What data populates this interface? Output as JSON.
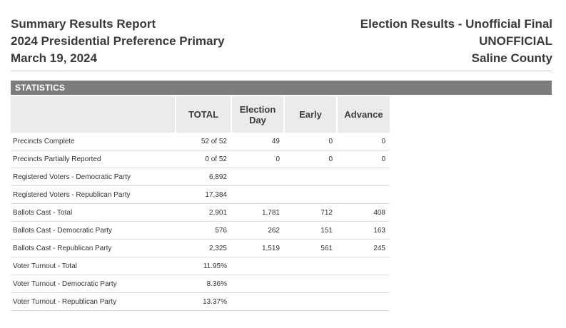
{
  "header": {
    "title": "Summary Results Report",
    "election": "2024 Presidential Preference Primary",
    "date": "March 19, 2024",
    "status": "Election Results - Unofficial Final",
    "official_label": "UNOFFICIAL",
    "county": "Saline County"
  },
  "section": {
    "title": "STATISTICS"
  },
  "table": {
    "columns": {
      "label": "",
      "total": "TOTAL",
      "election_day": "Election Day",
      "early": "Early",
      "advance": "Advance"
    },
    "rows": [
      {
        "label": "Precincts Complete",
        "total": "52 of 52",
        "election_day": "49",
        "early": "0",
        "advance": "0"
      },
      {
        "label": "Precincts Partially Reported",
        "total": "0 of 52",
        "election_day": "0",
        "early": "0",
        "advance": "0"
      },
      {
        "label": "Registered Voters - Democratic Party",
        "total": "6,892",
        "election_day": "",
        "early": "",
        "advance": ""
      },
      {
        "label": "Registered Voters - Republican Party",
        "total": "17,384",
        "election_day": "",
        "early": "",
        "advance": ""
      },
      {
        "label": "Ballots Cast - Total",
        "total": "2,901",
        "election_day": "1,781",
        "early": "712",
        "advance": "408"
      },
      {
        "label": "Ballots Cast - Democratic Party",
        "total": "576",
        "election_day": "262",
        "early": "151",
        "advance": "163"
      },
      {
        "label": "Ballots Cast - Republican Party",
        "total": "2,325",
        "election_day": "1,519",
        "early": "561",
        "advance": "245"
      },
      {
        "label": "Voter Turnout - Total",
        "total": "11.95%",
        "election_day": "",
        "early": "",
        "advance": ""
      },
      {
        "label": "Voter Turnout - Democratic Party",
        "total": "8.36%",
        "election_day": "",
        "early": "",
        "advance": ""
      },
      {
        "label": "Voter Turnout - Republican Party",
        "total": "13.37%",
        "election_day": "",
        "early": "",
        "advance": ""
      }
    ]
  }
}
